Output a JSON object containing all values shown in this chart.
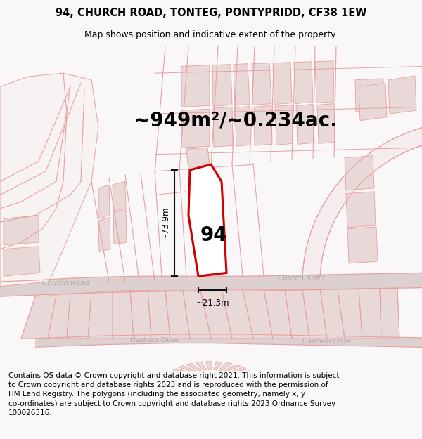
{
  "title_line1": "94, CHURCH ROAD, TONTEG, PONTYPRIDD, CF38 1EW",
  "title_line2": "Map shows position and indicative extent of the property.",
  "area_label": "~949m²/~0.234ac.",
  "property_number": "94",
  "dim_vertical": "~73.9m",
  "dim_horizontal": "~21.3m",
  "footer_text": "Contains OS data © Crown copyright and database right 2021. This information is subject\nto Crown copyright and database rights 2023 and is reproduced with the permission of\nHM Land Registry. The polygons (including the associated geometry, namely x, y\nco-ordinates) are subject to Crown copyright and database rights 2023 Ordnance Survey\n100026316.",
  "bg_color": "#f9f7f7",
  "map_bg_color": "#faf8f8",
  "plot_fill": "#ffffff",
  "plot_edge": "#cc0000",
  "dim_color": "#111111",
  "road_label_color": "#aaaaaa",
  "title_fontsize": 10.5,
  "subtitle_fontsize": 9,
  "area_fontsize": 20,
  "number_fontsize": 20,
  "dim_fontsize": 8.5,
  "road_label_fontsize": 7.5,
  "footer_fontsize": 7.5,
  "line_color": "#e8a0a0",
  "fill_color": "#f5e8e8",
  "bld_fill": "#e8d8d8",
  "bld_edge": "#e8a0a0",
  "road_fill": "#ddd0d0"
}
